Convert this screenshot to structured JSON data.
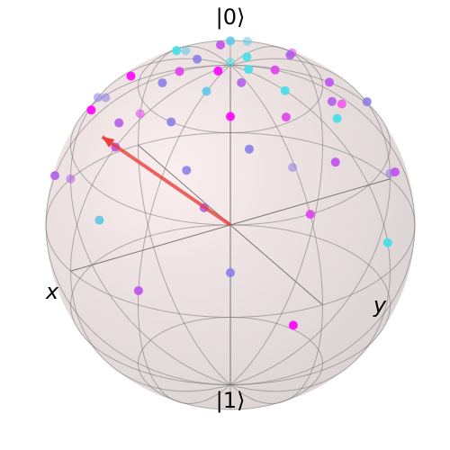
{
  "chart_data": {
    "type": "bloch",
    "labels": {
      "z_top": "|0⟩",
      "z_bottom": "|1⟩",
      "x": "x",
      "y": "y"
    },
    "vector": [
      0.6,
      -0.35,
      0.55
    ],
    "vector_color": "#e8403a",
    "theta": [
      5,
      8,
      10,
      12,
      14,
      15,
      18,
      20,
      22,
      24,
      25,
      27,
      28,
      30,
      32,
      33,
      35,
      36,
      38,
      40,
      42,
      44,
      45,
      48,
      50,
      52,
      55,
      58,
      60,
      62,
      65,
      68,
      70,
      72,
      75,
      78,
      80,
      85,
      88,
      90,
      95,
      100,
      6,
      16,
      26,
      34,
      46,
      56
    ],
    "phi": [
      10,
      200,
      80,
      300,
      150,
      30,
      250,
      120,
      340,
      60,
      190,
      280,
      100,
      20,
      230,
      160,
      310,
      70,
      130,
      350,
      210,
      40,
      260,
      110,
      320,
      170,
      50,
      240,
      90,
      290,
      140,
      10,
      200,
      330,
      60,
      270,
      120,
      30,
      180,
      300,
      80,
      220,
      130,
      330,
      240,
      140,
      0,
      300
    ],
    "colors": [
      "#ff00ff",
      "#40e0e8",
      "#b05ee8",
      "#8c7ee8",
      "#e040f0",
      "#5ec8e8",
      "#c050f0",
      "#40e0e8",
      "#8c7ee8",
      "#ff00ff",
      "#b05ee8",
      "#40e0e8",
      "#e040f0",
      "#8c7ee8",
      "#5ec8e8",
      "#c050f0",
      "#ff00ff",
      "#8c7ee8",
      "#40e0e8",
      "#b05ee8",
      "#e040f0",
      "#8c7ee8",
      "#5ec8e8",
      "#c050f0",
      "#ff00ff",
      "#8c7ee8",
      "#b05ee8",
      "#40e0e8",
      "#e040f0",
      "#8c7ee8",
      "#c050f0",
      "#5ec8e8",
      "#ff00ff",
      "#b05ee8",
      "#8c7ee8",
      "#e040f0",
      "#40e0e8",
      "#c050f0",
      "#8c7ee8",
      "#b05ee8",
      "#ff00ff",
      "#8c7ee8",
      "#40e0e8",
      "#e040f0",
      "#5ec8e8",
      "#b05ee8",
      "#c050f0",
      "#8c7ee8"
    ]
  }
}
